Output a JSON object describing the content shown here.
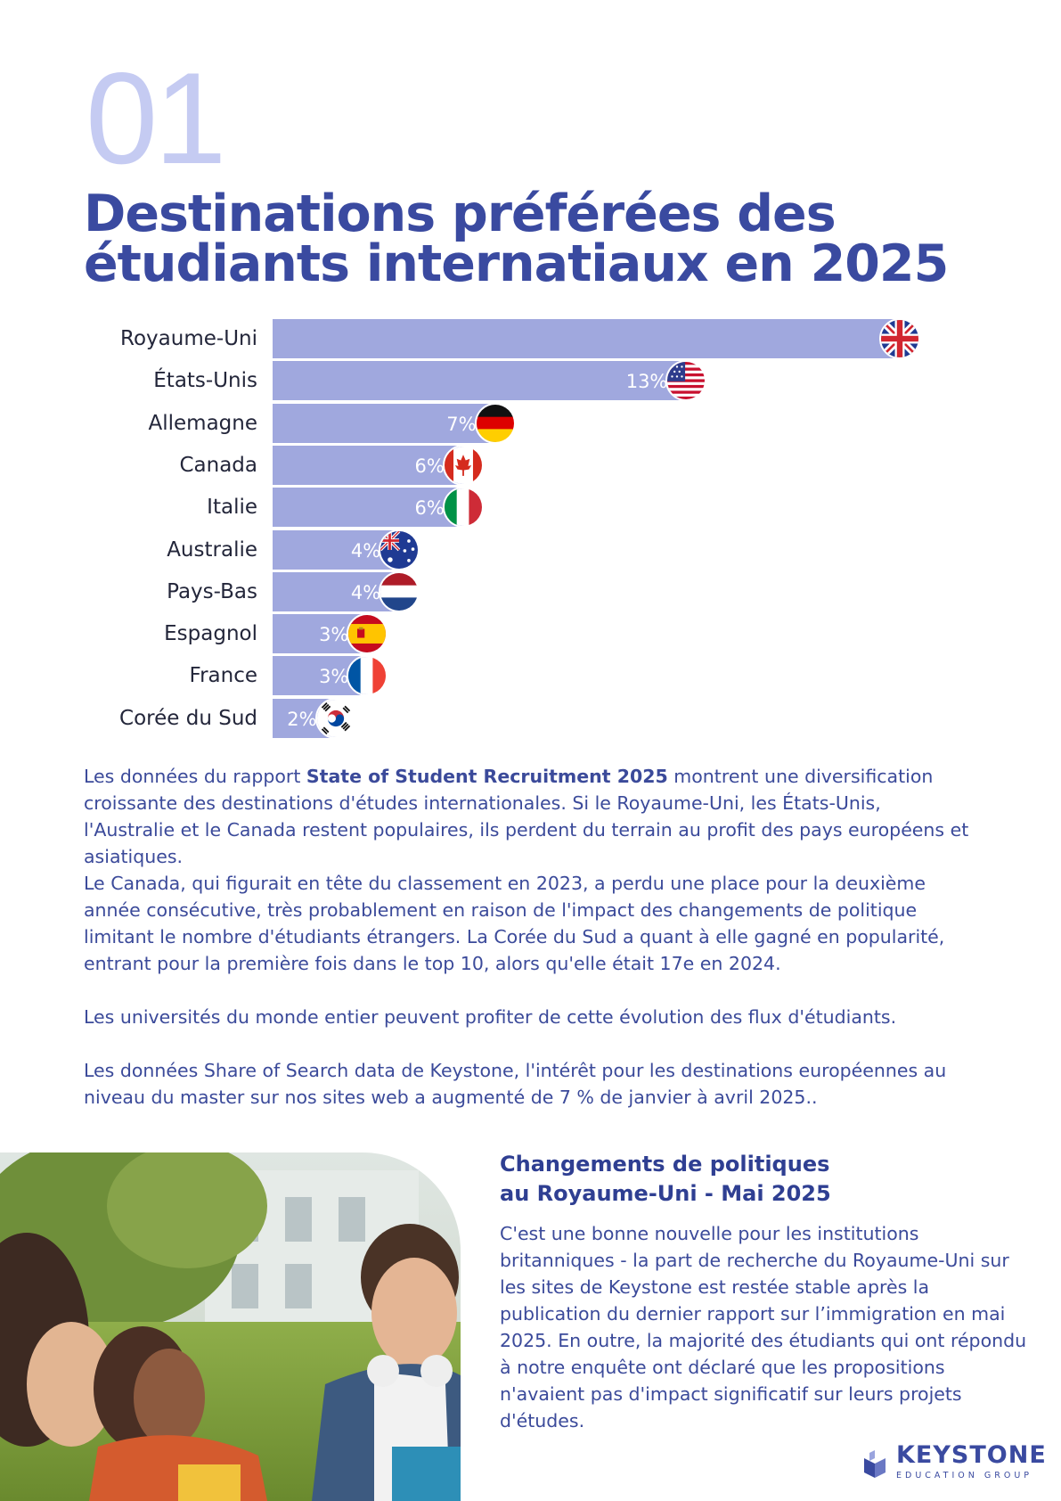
{
  "header": {
    "section_number": "01",
    "title_line1": "Destinations préférées des",
    "title_line2": "étudiants internatiaux en 2025"
  },
  "chart_data": {
    "type": "bar",
    "orientation": "horizontal",
    "categories": [
      "Royaume-Uni",
      "États-Unis",
      "Allemagne",
      "Canada",
      "Italie",
      "Australie",
      "Pays-Bas",
      "Espagnol",
      "France",
      "Corée du Sud"
    ],
    "value_labels": [
      "",
      "13%",
      "7%",
      "6%",
      "6%",
      "4%",
      "4%",
      "3%",
      "3%",
      "2%"
    ],
    "values": [
      19.7,
      13,
      7,
      6,
      6,
      4,
      4,
      3,
      3,
      2
    ],
    "flags": [
      "uk-flag-icon",
      "us-flag-icon",
      "germany-flag-icon",
      "canada-flag-icon",
      "italy-flag-icon",
      "australia-flag-icon",
      "netherlands-flag-icon",
      "spain-flag-icon",
      "france-flag-icon",
      "south-korea-flag-icon"
    ],
    "bar_color": "#a0a8de",
    "label_color": "#ffffff"
  },
  "body": {
    "p1_pre": "Les données du rapport ",
    "p1_bold": "State of Student Recruitment 2025",
    "p1_post": " montrent une diversification croissante des destinations d'études internationales. Si le Royaume-Uni, les États-Unis, l'Australie et le Canada restent populaires, ils perdent du terrain au profit des pays européens et asiatiques.",
    "p2": "Le Canada, qui figurait en tête du classement en 2023, a perdu une place pour la deuxième année consécutive, très probablement en raison de l'impact des changements de politique limitant le nombre d'étudiants étrangers. La Corée du Sud a quant à elle gagné en popularité, entrant pour la première fois dans le top 10, alors qu'elle était 17e en 2024.",
    "p3": "Les universités du monde entier peuvent profiter de cette évolution des flux d'étudiants.",
    "p4": "Les données Share of Search data de Keystone, l'intérêt pour les destinations européennes au niveau du master sur nos sites web a augmenté de 7 % de janvier à avril 2025.."
  },
  "sidebar": {
    "title_line1": "Changements de politiques",
    "title_line2": "au Royaume-Uni - Mai 2025",
    "text": "C'est une bonne nouvelle pour les institutions britanniques - la part de recherche du Royaume-Uni sur les sites de Keystone est restée stable après la publication du dernier rapport sur l’immigration en mai 2025. En outre, la majorité des étudiants qui ont répondu à notre enquête ont déclaré que les propositions n'avaient pas d'impact significatif sur leurs projets d'études."
  },
  "logo": {
    "name": "KEYSTONE",
    "sub": "EDUCATION GROUP"
  },
  "colors": {
    "accent": "#3a4aa0",
    "number": "#c5cbf2",
    "bar": "#a0a8de"
  }
}
